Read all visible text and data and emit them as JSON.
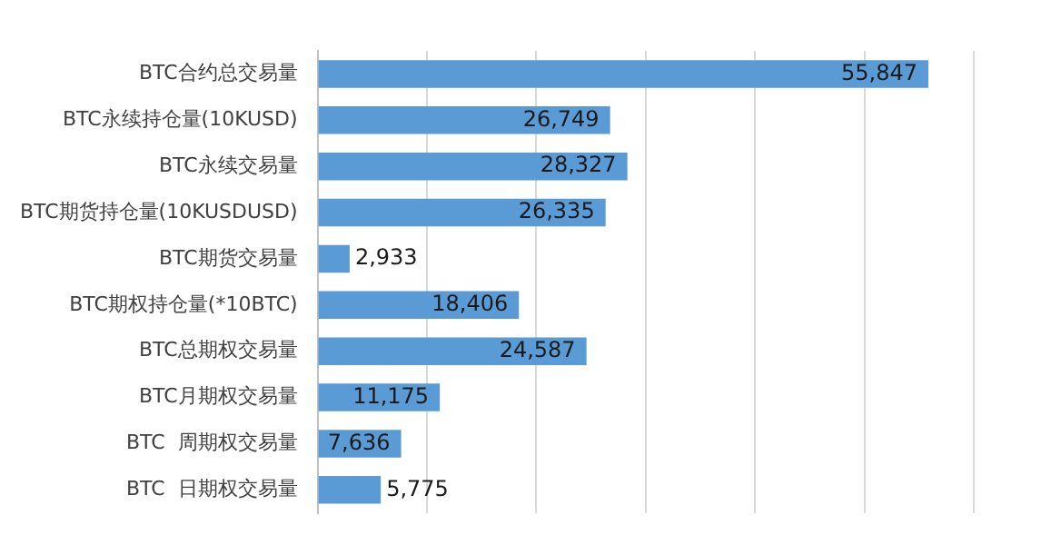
{
  "chart_data": {
    "type": "bar",
    "orientation": "horizontal",
    "categories": [
      "BTC合约总交易量",
      "BTC永续持仓量(10KUSD)",
      "BTC永续交易量",
      "BTC期货持仓量(10KUSDUSD)",
      "BTC期货交易量",
      "BTC期权持仓量(*10BTC)",
      "BTC总期权交易量",
      "BTC月期权交易量",
      "BTC  周期权交易量",
      "BTC  日期权交易量"
    ],
    "values": [
      55847,
      26749,
      28327,
      26335,
      2933,
      18406,
      24587,
      11175,
      7636,
      5775
    ],
    "color": "#5b9bd5",
    "value_labels": [
      "55,847",
      "26,749",
      "28,327",
      "26,335",
      "2,933",
      "18,406",
      "24,587",
      "11,175",
      "7,636",
      "5,775"
    ],
    "grid": "x",
    "tick_labels": "y"
  }
}
